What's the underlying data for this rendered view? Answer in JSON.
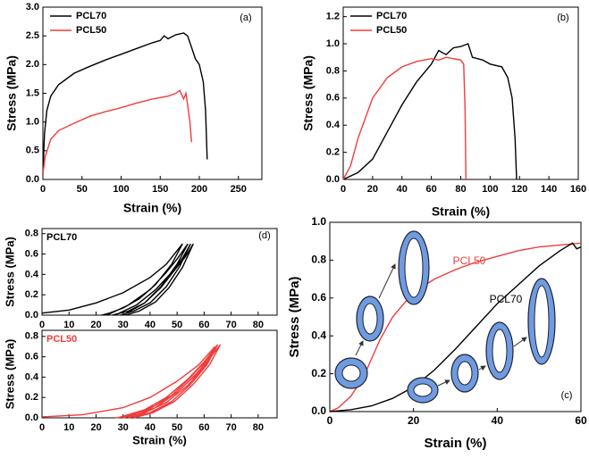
{
  "chart_data": [
    {
      "type": "line",
      "panel_label": "(a)",
      "xlabel": "Strain (%)",
      "ylabel": "Stress (MPa)",
      "xlim": [
        0,
        280
      ],
      "ylim": [
        0,
        3.0
      ],
      "xticks": [
        0,
        50,
        100,
        150,
        200,
        250
      ],
      "yticks": [
        {
          "value": 0,
          "label": "0.0"
        },
        0.5,
        {
          "value": 1,
          "label": "1.0"
        },
        1.5,
        {
          "value": 2,
          "label": "2.0"
        },
        2.5,
        {
          "value": 3,
          "label": "3.0"
        }
      ],
      "legend": "upper left",
      "series": [
        {
          "name": "PCL70",
          "color": "#000000",
          "x": [
            0,
            2,
            5,
            10,
            20,
            40,
            60,
            80,
            100,
            120,
            140,
            150,
            155,
            160,
            170,
            180,
            185,
            190,
            195,
            200,
            205,
            208,
            210
          ],
          "values": [
            0.1,
            0.8,
            1.2,
            1.45,
            1.65,
            1.85,
            1.97,
            2.08,
            2.18,
            2.28,
            2.38,
            2.42,
            2.5,
            2.45,
            2.52,
            2.55,
            2.5,
            2.3,
            2.1,
            2.0,
            1.7,
            1.2,
            0.35
          ]
        },
        {
          "name": "PCL50",
          "color": "#f03c3c",
          "x": [
            0,
            3,
            10,
            20,
            40,
            60,
            80,
            100,
            120,
            140,
            160,
            170,
            175,
            180,
            183,
            185,
            188,
            190
          ],
          "values": [
            0.1,
            0.4,
            0.7,
            0.85,
            0.98,
            1.1,
            1.18,
            1.25,
            1.33,
            1.4,
            1.45,
            1.5,
            1.55,
            1.4,
            1.5,
            1.3,
            1.0,
            0.65
          ]
        }
      ]
    },
    {
      "type": "line",
      "panel_label": "(b)",
      "xlabel": "Strain (%)",
      "ylabel": "Stress (MPa)",
      "xlim": [
        0,
        160
      ],
      "ylim": [
        0,
        1.27
      ],
      "xticks": [
        0,
        20,
        40,
        60,
        80,
        100,
        120,
        140,
        160
      ],
      "yticks": [
        {
          "value": 0,
          "label": "0.0"
        },
        0.2,
        0.4,
        0.6,
        0.8,
        {
          "value": 1,
          "label": "1.0"
        },
        1.2
      ],
      "legend": "upper left",
      "series": [
        {
          "name": "PCL70",
          "color": "#000000",
          "x": [
            0,
            10,
            20,
            30,
            40,
            50,
            60,
            65,
            70,
            75,
            80,
            85,
            88,
            95,
            100,
            108,
            112,
            115,
            117,
            118
          ],
          "values": [
            0,
            0.05,
            0.15,
            0.35,
            0.55,
            0.72,
            0.85,
            0.95,
            0.92,
            0.97,
            0.98,
            1.0,
            0.9,
            0.88,
            0.85,
            0.83,
            0.75,
            0.6,
            0.3,
            0
          ]
        },
        {
          "name": "PCL50",
          "color": "#f03c3c",
          "x": [
            0,
            5,
            10,
            20,
            30,
            40,
            50,
            60,
            65,
            70,
            80,
            82,
            83,
            83.5
          ],
          "values": [
            0,
            0.1,
            0.3,
            0.6,
            0.75,
            0.83,
            0.87,
            0.89,
            0.88,
            0.9,
            0.88,
            0.85,
            0.5,
            0
          ]
        }
      ]
    },
    {
      "type": "line",
      "panel_label": "(c)",
      "xlabel": "Strain (%)",
      "ylabel": "Stress (MPa)",
      "xlim": [
        0,
        60
      ],
      "ylim": [
        0,
        1.0
      ],
      "xticks": [
        0,
        20,
        40,
        60
      ],
      "yticks": [
        {
          "value": 0,
          "label": "0.0"
        },
        0.2,
        0.4,
        0.6,
        0.8,
        {
          "value": 1,
          "label": "1.0"
        }
      ],
      "annotations": [
        {
          "text": "PCL50",
          "color": "#f03c3c"
        },
        {
          "text": "PCL70",
          "color": "#000000"
        }
      ],
      "series": [
        {
          "color": "#f03c3c",
          "x": [
            0,
            2,
            5,
            8,
            10,
            12,
            15,
            20,
            25,
            30,
            35,
            40,
            45,
            50,
            55,
            60
          ],
          "values": [
            0,
            0.02,
            0.08,
            0.18,
            0.28,
            0.38,
            0.5,
            0.63,
            0.7,
            0.75,
            0.79,
            0.82,
            0.85,
            0.87,
            0.88,
            0.89
          ]
        },
        {
          "color": "#000000",
          "x": [
            0,
            5,
            10,
            15,
            20,
            25,
            30,
            35,
            40,
            45,
            50,
            55,
            58,
            59,
            60
          ],
          "values": [
            0,
            0.01,
            0.03,
            0.07,
            0.13,
            0.22,
            0.33,
            0.45,
            0.57,
            0.67,
            0.77,
            0.85,
            0.89,
            0.86,
            0.87
          ]
        }
      ]
    },
    {
      "type": "line",
      "panel_label": "(d)",
      "label": "PCL70",
      "ylabel": "Stress (MPa)",
      "xlim": [
        0,
        87
      ],
      "ylim": [
        0,
        0.85
      ],
      "xticks": [
        0,
        10,
        20,
        30,
        40,
        50,
        60,
        70,
        80
      ],
      "yticks": [
        {
          "value": 0,
          "label": "0.0"
        },
        0.2,
        0.4,
        0.6,
        0.8
      ],
      "series": [
        {
          "color": "#000000",
          "x": [
            0,
            10,
            20,
            30,
            40,
            46,
            52,
            48,
            42,
            36,
            30,
            25,
            22,
            null,
            24,
            32,
            40,
            46,
            50,
            54,
            50,
            44,
            38,
            32,
            26,
            null,
            27,
            35,
            42,
            48,
            52,
            55,
            51,
            46,
            40,
            34,
            29,
            null,
            30,
            38,
            44,
            49,
            53,
            56,
            52,
            47,
            42,
            36,
            31
          ],
          "values": [
            0.02,
            0.05,
            0.12,
            0.22,
            0.37,
            0.5,
            0.7,
            0.5,
            0.3,
            0.16,
            0.07,
            0.02,
            0,
            null,
            0,
            0.1,
            0.25,
            0.42,
            0.55,
            0.7,
            0.5,
            0.28,
            0.12,
            0.04,
            0,
            null,
            0,
            0.1,
            0.25,
            0.42,
            0.56,
            0.7,
            0.48,
            0.28,
            0.12,
            0.04,
            0,
            null,
            0,
            0.12,
            0.27,
            0.44,
            0.57,
            0.7,
            0.47,
            0.27,
            0.13,
            0.04,
            0
          ]
        }
      ]
    },
    {
      "type": "line",
      "label": "PCL50",
      "xlabel": "Strain (%)",
      "ylabel": "Stress (MPa)",
      "xlim": [
        0,
        87
      ],
      "ylim": [
        0,
        0.86
      ],
      "xticks": [
        0,
        10,
        20,
        30,
        40,
        50,
        60,
        70,
        80
      ],
      "yticks": [
        {
          "value": 0,
          "label": "0.0"
        },
        0.2,
        0.4,
        0.6,
        0.8
      ],
      "series": [
        {
          "color": "#f03c3c",
          "x": [
            0,
            15,
            30,
            40,
            50,
            58,
            64,
            58,
            50,
            42,
            35,
            30,
            27,
            null,
            28,
            38,
            46,
            54,
            60,
            65,
            60,
            54,
            46,
            38,
            30,
            null,
            30,
            40,
            48,
            55,
            61,
            65,
            61,
            55,
            48,
            40,
            32,
            null,
            32,
            42,
            50,
            57,
            62,
            66,
            62,
            56,
            49,
            41,
            34
          ],
          "values": [
            0.01,
            0.03,
            0.1,
            0.2,
            0.36,
            0.52,
            0.7,
            0.45,
            0.25,
            0.12,
            0.05,
            0.01,
            0,
            null,
            0,
            0.08,
            0.2,
            0.38,
            0.55,
            0.72,
            0.5,
            0.32,
            0.15,
            0.05,
            0,
            null,
            0,
            0.09,
            0.22,
            0.4,
            0.57,
            0.72,
            0.52,
            0.33,
            0.16,
            0.05,
            0,
            null,
            0,
            0.1,
            0.25,
            0.43,
            0.58,
            0.72,
            0.52,
            0.33,
            0.16,
            0.05,
            0
          ]
        }
      ]
    }
  ]
}
